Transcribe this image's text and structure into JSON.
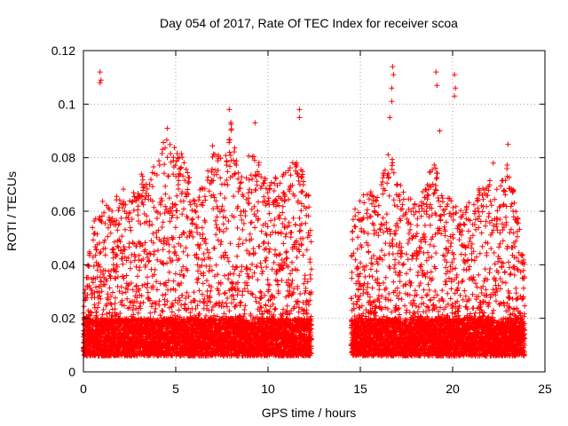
{
  "chart_data": {
    "type": "scatter",
    "title": "Day 054 of 2017, Rate Of TEC Index for receiver scoa",
    "xlabel": "GPS time / hours",
    "ylabel": "ROTI / TECUs",
    "xlim": [
      0,
      25
    ],
    "ylim": [
      0,
      0.12
    ],
    "xticks": [
      0,
      5,
      10,
      15,
      20,
      25
    ],
    "xtick_labels": [
      "0",
      "5",
      "10",
      "15",
      "20",
      "25"
    ],
    "yticks": [
      0,
      0.02,
      0.04,
      0.06,
      0.08,
      0.1,
      0.12
    ],
    "ytick_labels": [
      "0",
      "0.02",
      "0.04",
      "0.06",
      "0.08",
      "0.1",
      "0.12"
    ],
    "grid": true,
    "marker": "+",
    "series": [
      {
        "name": "ROTI",
        "color": "#ff0000",
        "segments": [
          {
            "x_start": 0.0,
            "x_end": 12.35
          },
          {
            "x_start": 14.5,
            "x_end": 23.9
          }
        ],
        "baseline_range": [
          0.006,
          0.02
        ],
        "envelope": [
          [
            0.0,
            0.03
          ],
          [
            0.5,
            0.055
          ],
          [
            1.0,
            0.065
          ],
          [
            1.5,
            0.06
          ],
          [
            2.0,
            0.07
          ],
          [
            2.5,
            0.065
          ],
          [
            3.0,
            0.075
          ],
          [
            3.5,
            0.075
          ],
          [
            4.0,
            0.085
          ],
          [
            4.5,
            0.09
          ],
          [
            5.0,
            0.085
          ],
          [
            5.5,
            0.08
          ],
          [
            6.0,
            0.065
          ],
          [
            6.5,
            0.07
          ],
          [
            7.0,
            0.085
          ],
          [
            7.5,
            0.08
          ],
          [
            8.0,
            0.095
          ],
          [
            8.5,
            0.075
          ],
          [
            9.0,
            0.085
          ],
          [
            9.5,
            0.08
          ],
          [
            10.0,
            0.07
          ],
          [
            10.5,
            0.075
          ],
          [
            11.0,
            0.075
          ],
          [
            11.5,
            0.08
          ],
          [
            12.0,
            0.075
          ],
          [
            12.35,
            0.06
          ],
          [
            14.5,
            0.06
          ],
          [
            15.0,
            0.065
          ],
          [
            15.5,
            0.07
          ],
          [
            16.0,
            0.07
          ],
          [
            16.5,
            0.085
          ],
          [
            17.0,
            0.075
          ],
          [
            17.5,
            0.065
          ],
          [
            18.0,
            0.065
          ],
          [
            18.5,
            0.07
          ],
          [
            19.0,
            0.08
          ],
          [
            19.5,
            0.065
          ],
          [
            20.0,
            0.065
          ],
          [
            20.5,
            0.06
          ],
          [
            21.0,
            0.065
          ],
          [
            21.5,
            0.07
          ],
          [
            22.0,
            0.075
          ],
          [
            22.5,
            0.07
          ],
          [
            23.0,
            0.08
          ],
          [
            23.5,
            0.06
          ],
          [
            23.9,
            0.04
          ]
        ],
        "notable_points": [
          {
            "x": 0.9,
            "y": 0.112
          },
          {
            "x": 0.95,
            "y": 0.109
          },
          {
            "x": 0.9,
            "y": 0.108
          },
          {
            "x": 7.9,
            "y": 0.098
          },
          {
            "x": 9.3,
            "y": 0.093
          },
          {
            "x": 11.7,
            "y": 0.098
          },
          {
            "x": 11.7,
            "y": 0.095
          },
          {
            "x": 4.55,
            "y": 0.091
          },
          {
            "x": 16.75,
            "y": 0.114
          },
          {
            "x": 16.8,
            "y": 0.111
          },
          {
            "x": 16.7,
            "y": 0.106
          },
          {
            "x": 16.7,
            "y": 0.101
          },
          {
            "x": 16.6,
            "y": 0.095
          },
          {
            "x": 19.1,
            "y": 0.112
          },
          {
            "x": 19.15,
            "y": 0.107
          },
          {
            "x": 19.3,
            "y": 0.09
          },
          {
            "x": 20.1,
            "y": 0.111
          },
          {
            "x": 20.15,
            "y": 0.106
          },
          {
            "x": 20.1,
            "y": 0.103
          },
          {
            "x": 23.0,
            "y": 0.085
          },
          {
            "x": 22.2,
            "y": 0.078
          }
        ]
      }
    ]
  }
}
